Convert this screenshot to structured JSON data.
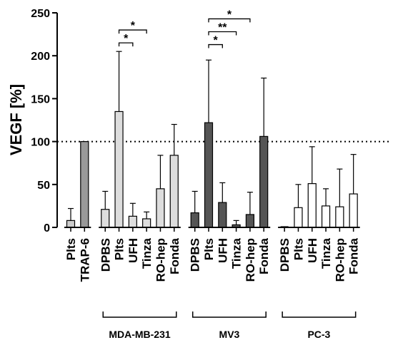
{
  "chart_data": {
    "type": "bar",
    "title": "",
    "ylabel": "VEGF [%]",
    "ylim": [
      0,
      250
    ],
    "yticks": [
      0,
      50,
      100,
      150,
      200,
      250
    ],
    "reference_line": 100,
    "colors": {
      "axis": "#000000",
      "reference": "#000000",
      "control_light": "#cccccc",
      "control_dark": "#999999",
      "mda": "#dddddd",
      "mv3": "#555555",
      "pc3": "#ffffff"
    },
    "bars": [
      {
        "label": "Plts",
        "value": 8,
        "error": 14,
        "fill": "#cccccc",
        "slot": 0
      },
      {
        "label": "TRAP-6",
        "value": 100,
        "error": 0,
        "fill": "#999999",
        "slot": 1
      },
      {
        "label": "DPBS",
        "value": 21,
        "error": 21,
        "fill": "#dddddd",
        "slot": 2.5
      },
      {
        "label": "Plts",
        "value": 135,
        "error": 70,
        "fill": "#dddddd",
        "slot": 3.5
      },
      {
        "label": "UFH",
        "value": 13,
        "error": 15,
        "fill": "#dddddd",
        "slot": 4.5
      },
      {
        "label": "Tinza",
        "value": 10,
        "error": 8,
        "fill": "#dddddd",
        "slot": 5.5
      },
      {
        "label": "RO-hep",
        "value": 45,
        "error": 39,
        "fill": "#dddddd",
        "slot": 6.5
      },
      {
        "label": "Fonda",
        "value": 84,
        "error": 36,
        "fill": "#dddddd",
        "slot": 7.5
      },
      {
        "label": "DPBS",
        "value": 17,
        "error": 25,
        "fill": "#555555",
        "slot": 9
      },
      {
        "label": "Plts",
        "value": 122,
        "error": 73,
        "fill": "#555555",
        "slot": 10
      },
      {
        "label": "UFH",
        "value": 29,
        "error": 23,
        "fill": "#555555",
        "slot": 11
      },
      {
        "label": "Tinza",
        "value": 3,
        "error": 5,
        "fill": "#555555",
        "slot": 12
      },
      {
        "label": "RO-hep",
        "value": 15,
        "error": 26,
        "fill": "#555555",
        "slot": 13
      },
      {
        "label": "Fonda",
        "value": 106,
        "error": 68,
        "fill": "#555555",
        "slot": 14
      },
      {
        "label": "DPBS",
        "value": 0,
        "error": 0,
        "fill": "#ffffff",
        "slot": 15.5
      },
      {
        "label": "Plts",
        "value": 23,
        "error": 27,
        "fill": "#ffffff",
        "slot": 16.5
      },
      {
        "label": "UFH",
        "value": 51,
        "error": 43,
        "fill": "#ffffff",
        "slot": 17.5
      },
      {
        "label": "Tinza",
        "value": 25,
        "error": 20,
        "fill": "#ffffff",
        "slot": 18.5
      },
      {
        "label": "RO-hep",
        "value": 24,
        "error": 44,
        "fill": "#ffffff",
        "slot": 19.5
      },
      {
        "label": "Fonda",
        "value": 39,
        "error": 46,
        "fill": "#ffffff",
        "slot": 20.5
      }
    ],
    "groups": [
      {
        "name": "MDA-MB-231",
        "from_slot": 2.5,
        "to_slot": 7.5
      },
      {
        "name": "MV3",
        "from_slot": 9,
        "to_slot": 14
      },
      {
        "name": "PC-3",
        "from_slot": 15.5,
        "to_slot": 20.5
      }
    ],
    "significance": [
      {
        "from_slot": 3.5,
        "to_slot": 4.5,
        "y": 215,
        "text": "*"
      },
      {
        "from_slot": 3.5,
        "to_slot": 5.5,
        "y": 230,
        "text": "*"
      },
      {
        "from_slot": 10,
        "to_slot": 11,
        "y": 213,
        "text": "*"
      },
      {
        "from_slot": 10,
        "to_slot": 12,
        "y": 228,
        "text": "**"
      },
      {
        "from_slot": 10,
        "to_slot": 13,
        "y": 243,
        "text": "*"
      }
    ]
  }
}
